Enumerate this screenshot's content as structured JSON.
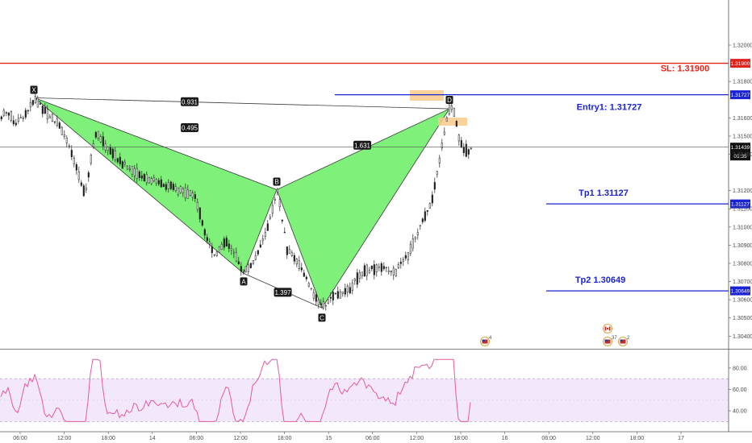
{
  "chart_data": {
    "type": "candlestick",
    "price_axis": {
      "range": [
        1.30335,
        1.32248
      ],
      "ticks": [
        "1.32000",
        "1.31800",
        "1.31600",
        "1.31500",
        "1.31400",
        "1.31200",
        "1.31100",
        "1.31000",
        "1.30900",
        "1.30800",
        "1.30700",
        "1.30600",
        "1.30500",
        "1.30400"
      ]
    },
    "time_axis": {
      "ticks": [
        "06:00",
        "12:00",
        "18:00",
        "14",
        "06:00",
        "12:00",
        "18:00",
        "15",
        "06:00",
        "12:00",
        "18:00",
        "16",
        "06:00",
        "12:00",
        "18:00",
        "17"
      ]
    },
    "levels": [
      {
        "name": "sl",
        "label": "SL: 1.31900",
        "price": 1.319,
        "badge": "1.31900",
        "color": "#e0241b"
      },
      {
        "name": "entry",
        "label": "Entry1: 1.31727",
        "price": 1.31727,
        "badge": "1.31727",
        "color": "#1a23d4"
      },
      {
        "name": "tp1",
        "label": "Tp1 1.31127",
        "price": 1.31127,
        "badge": "1.31127",
        "color": "#1a23d4"
      },
      {
        "name": "tp2",
        "label": "Tp2 1.30649",
        "price": 1.30649,
        "badge": "1.30649",
        "color": "#1a23d4"
      }
    ],
    "current_price": {
      "price": 1.31439,
      "badge": "1.31439",
      "countdown": "01:35"
    },
    "pattern_points": [
      {
        "label": "X",
        "price": 1.3171
      },
      {
        "label": "A",
        "price": 1.30745
      },
      {
        "label": "B",
        "price": 1.31205
      },
      {
        "label": "C",
        "price": 1.30555
      },
      {
        "label": "D",
        "price": 1.3165
      }
    ],
    "pattern_ratios": [
      {
        "label": "0.931"
      },
      {
        "label": "0.495"
      },
      {
        "label": "1.631"
      },
      {
        "label": "1.397"
      }
    ],
    "rsi_axis": {
      "range": [
        25,
        95
      ],
      "ticks": [
        "80.00",
        "60.00",
        "40.00"
      ],
      "upper": 70,
      "lower": 30
    },
    "events": [
      {
        "flag": "US",
        "count": "4"
      },
      {
        "flag": "CA",
        "count": ""
      },
      {
        "flag": "US",
        "count": "37"
      },
      {
        "flag": "US",
        "count": "2"
      }
    ],
    "colors": {
      "pattern_fill": "#7ff07a",
      "zone": "#f9c98a",
      "rsi_band": "#f3e7fb",
      "rsi_line": "#e25ba4",
      "candle": "#1f1f1f"
    }
  }
}
